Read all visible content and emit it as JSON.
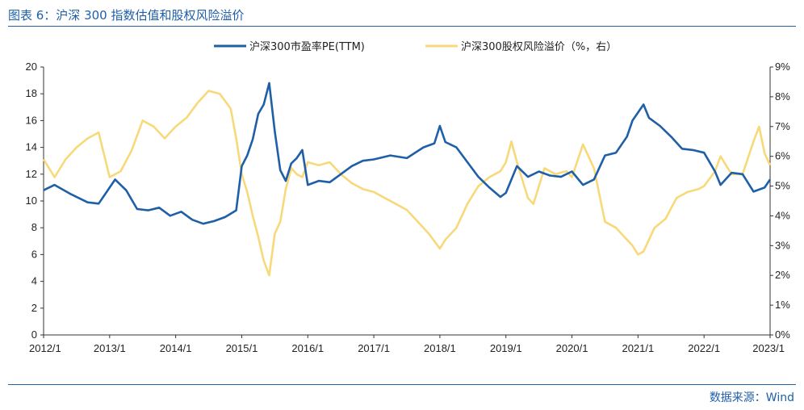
{
  "header": {
    "title": "图表 6：沪深 300 指数估值和股权风险溢价"
  },
  "footer": {
    "source": "数据来源：Wind"
  },
  "chart_data": {
    "type": "line",
    "x_start": "2012/1",
    "x_end": "2023/1",
    "x_ticks": [
      "2012/1",
      "2013/1",
      "2014/1",
      "2015/1",
      "2016/1",
      "2017/1",
      "2018/1",
      "2019/1",
      "2020/1",
      "2021/1",
      "2022/1",
      "2023/1"
    ],
    "y_left": {
      "lim": [
        0,
        20
      ],
      "ticks": [
        "0",
        "2",
        "4",
        "6",
        "8",
        "10",
        "12",
        "14",
        "16",
        "18",
        "20"
      ]
    },
    "y_right": {
      "lim": [
        0,
        9
      ],
      "ticks": [
        "0%",
        "1%",
        "2%",
        "3%",
        "4%",
        "5%",
        "6%",
        "7%",
        "8%",
        "9%"
      ]
    },
    "grid": false,
    "legend_position": "top-center",
    "series": [
      {
        "name": "沪深300市盈率PE(TTM)",
        "axis": "left",
        "color": "#1f5fa8",
        "points": [
          [
            "2012/1",
            10.8
          ],
          [
            "2012/3",
            11.2
          ],
          [
            "2012/6",
            10.5
          ],
          [
            "2012/9",
            9.9
          ],
          [
            "2012/11",
            9.8
          ],
          [
            "2013/1",
            11.0
          ],
          [
            "2013/2",
            11.6
          ],
          [
            "2013/4",
            10.8
          ],
          [
            "2013/6",
            9.4
          ],
          [
            "2013/8",
            9.3
          ],
          [
            "2013/10",
            9.5
          ],
          [
            "2013/12",
            8.9
          ],
          [
            "2014/2",
            9.2
          ],
          [
            "2014/4",
            8.6
          ],
          [
            "2014/6",
            8.3
          ],
          [
            "2014/8",
            8.5
          ],
          [
            "2014/10",
            8.8
          ],
          [
            "2014/12",
            9.3
          ],
          [
            "2015/1",
            12.6
          ],
          [
            "2015/2",
            13.4
          ],
          [
            "2015/3",
            14.6
          ],
          [
            "2015/4",
            16.5
          ],
          [
            "2015/5",
            17.2
          ],
          [
            "2015/6",
            18.8
          ],
          [
            "2015/7",
            15.2
          ],
          [
            "2015/8",
            12.3
          ],
          [
            "2015/9",
            11.5
          ],
          [
            "2015/10",
            12.8
          ],
          [
            "2015/11",
            13.2
          ],
          [
            "2015/12",
            13.8
          ],
          [
            "2016/1",
            11.2
          ],
          [
            "2016/3",
            11.5
          ],
          [
            "2016/5",
            11.4
          ],
          [
            "2016/7",
            12.0
          ],
          [
            "2016/9",
            12.6
          ],
          [
            "2016/11",
            13.0
          ],
          [
            "2017/1",
            13.1
          ],
          [
            "2017/4",
            13.4
          ],
          [
            "2017/7",
            13.2
          ],
          [
            "2017/10",
            14.0
          ],
          [
            "2017/12",
            14.3
          ],
          [
            "2018/1",
            15.6
          ],
          [
            "2018/2",
            14.4
          ],
          [
            "2018/4",
            14.0
          ],
          [
            "2018/6",
            12.9
          ],
          [
            "2018/8",
            11.8
          ],
          [
            "2018/10",
            11.0
          ],
          [
            "2018/12",
            10.3
          ],
          [
            "2019/1",
            10.6
          ],
          [
            "2019/3",
            12.6
          ],
          [
            "2019/5",
            11.8
          ],
          [
            "2019/7",
            12.2
          ],
          [
            "2019/9",
            11.9
          ],
          [
            "2019/11",
            11.8
          ],
          [
            "2020/1",
            12.2
          ],
          [
            "2020/3",
            11.2
          ],
          [
            "2020/5",
            11.6
          ],
          [
            "2020/7",
            13.4
          ],
          [
            "2020/9",
            13.6
          ],
          [
            "2020/11",
            14.8
          ],
          [
            "2020/12",
            16.0
          ],
          [
            "2021/2",
            17.2
          ],
          [
            "2021/3",
            16.2
          ],
          [
            "2021/5",
            15.6
          ],
          [
            "2021/7",
            14.8
          ],
          [
            "2021/9",
            13.9
          ],
          [
            "2021/11",
            13.8
          ],
          [
            "2022/1",
            13.6
          ],
          [
            "2022/3",
            12.2
          ],
          [
            "2022/4",
            11.2
          ],
          [
            "2022/6",
            12.1
          ],
          [
            "2022/8",
            12.0
          ],
          [
            "2022/10",
            10.7
          ],
          [
            "2022/12",
            11.0
          ],
          [
            "2023/1",
            11.6
          ]
        ]
      },
      {
        "name": "沪深300股权风险溢价（%，右）",
        "axis": "right",
        "color": "#f8d97a",
        "points": [
          [
            "2012/1",
            5.9
          ],
          [
            "2012/3",
            5.3
          ],
          [
            "2012/5",
            5.9
          ],
          [
            "2012/7",
            6.3
          ],
          [
            "2012/9",
            6.6
          ],
          [
            "2012/11",
            6.8
          ],
          [
            "2013/1",
            5.3
          ],
          [
            "2013/3",
            5.5
          ],
          [
            "2013/5",
            6.2
          ],
          [
            "2013/7",
            7.2
          ],
          [
            "2013/9",
            7.0
          ],
          [
            "2013/11",
            6.6
          ],
          [
            "2014/1",
            7.0
          ],
          [
            "2014/3",
            7.3
          ],
          [
            "2014/5",
            7.8
          ],
          [
            "2014/7",
            8.2
          ],
          [
            "2014/9",
            8.1
          ],
          [
            "2014/11",
            7.6
          ],
          [
            "2014/12",
            6.6
          ],
          [
            "2015/1",
            5.4
          ],
          [
            "2015/2",
            4.8
          ],
          [
            "2015/3",
            4.0
          ],
          [
            "2015/4",
            3.3
          ],
          [
            "2015/5",
            2.5
          ],
          [
            "2015/6",
            2.0
          ],
          [
            "2015/7",
            3.4
          ],
          [
            "2015/8",
            3.8
          ],
          [
            "2015/9",
            4.9
          ],
          [
            "2015/10",
            5.6
          ],
          [
            "2015/11",
            5.4
          ],
          [
            "2015/12",
            5.3
          ],
          [
            "2016/1",
            5.8
          ],
          [
            "2016/3",
            5.7
          ],
          [
            "2016/5",
            5.8
          ],
          [
            "2016/7",
            5.4
          ],
          [
            "2016/9",
            5.1
          ],
          [
            "2016/11",
            4.9
          ],
          [
            "2017/1",
            4.8
          ],
          [
            "2017/3",
            4.6
          ],
          [
            "2017/5",
            4.4
          ],
          [
            "2017/7",
            4.2
          ],
          [
            "2017/9",
            3.8
          ],
          [
            "2017/11",
            3.4
          ],
          [
            "2018/1",
            2.9
          ],
          [
            "2018/2",
            3.2
          ],
          [
            "2018/4",
            3.6
          ],
          [
            "2018/6",
            4.4
          ],
          [
            "2018/8",
            5.0
          ],
          [
            "2018/10",
            5.3
          ],
          [
            "2018/12",
            5.5
          ],
          [
            "2019/1",
            5.8
          ],
          [
            "2019/2",
            6.5
          ],
          [
            "2019/3",
            5.8
          ],
          [
            "2019/5",
            4.6
          ],
          [
            "2019/6",
            4.4
          ],
          [
            "2019/8",
            5.6
          ],
          [
            "2019/10",
            5.4
          ],
          [
            "2019/12",
            5.5
          ],
          [
            "2020/1",
            5.3
          ],
          [
            "2020/3",
            6.4
          ],
          [
            "2020/5",
            5.6
          ],
          [
            "2020/6",
            4.7
          ],
          [
            "2020/7",
            3.8
          ],
          [
            "2020/9",
            3.6
          ],
          [
            "2020/11",
            3.2
          ],
          [
            "2020/12",
            3.0
          ],
          [
            "2021/1",
            2.7
          ],
          [
            "2021/2",
            2.8
          ],
          [
            "2021/4",
            3.6
          ],
          [
            "2021/6",
            3.9
          ],
          [
            "2021/8",
            4.6
          ],
          [
            "2021/10",
            4.8
          ],
          [
            "2021/12",
            4.9
          ],
          [
            "2022/1",
            5.0
          ],
          [
            "2022/3",
            5.5
          ],
          [
            "2022/4",
            6.0
          ],
          [
            "2022/6",
            5.4
          ],
          [
            "2022/8",
            5.4
          ],
          [
            "2022/10",
            6.5
          ],
          [
            "2022/11",
            7.0
          ],
          [
            "2022/12",
            6.1
          ],
          [
            "2023/1",
            5.7
          ]
        ]
      }
    ]
  }
}
